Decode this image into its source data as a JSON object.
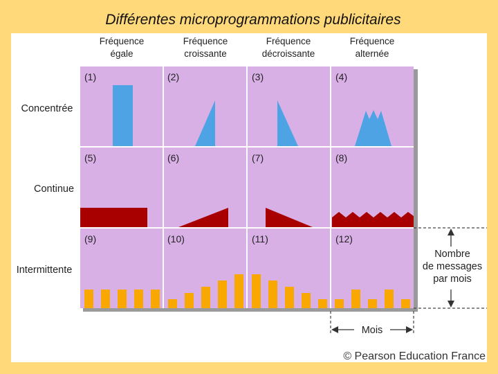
{
  "title": "Différentes microprogrammations publicitaires",
  "columns": [
    {
      "line1": "Fréquence",
      "line2": "égale"
    },
    {
      "line1": "Fréquence",
      "line2": "croissante"
    },
    {
      "line1": "Fréquence",
      "line2": "décroissante"
    },
    {
      "line1": "Fréquence",
      "line2": "alternée"
    }
  ],
  "rows": [
    "Concentrée",
    "Continue",
    "Intermittente"
  ],
  "cells": [
    "(1)",
    "(2)",
    "(3)",
    "(4)",
    "(5)",
    "(6)",
    "(7)",
    "(8)",
    "(9)",
    "(10)",
    "(11)",
    "(12)"
  ],
  "side_annotation": {
    "line1": "Nombre",
    "line2": "de messages",
    "line3": "par mois"
  },
  "bottom_annotation": "Mois",
  "copyright": "© Pearson Education France",
  "colors": {
    "cell_bg": "#d8b0e6",
    "concentrated": "#4ea3e4",
    "continuous": "#a80000",
    "intermittent": "#f8a800",
    "grid": "#ffffff",
    "shadow": "#9a9a9a"
  },
  "intermittent_bar_levels": {
    "equal": [
      1,
      1,
      1,
      1,
      1
    ],
    "increasing": [
      1,
      2,
      3,
      4,
      5
    ],
    "decreasing": [
      5,
      4,
      3,
      2,
      1
    ],
    "alternating": [
      1,
      3,
      1,
      3,
      1
    ]
  }
}
